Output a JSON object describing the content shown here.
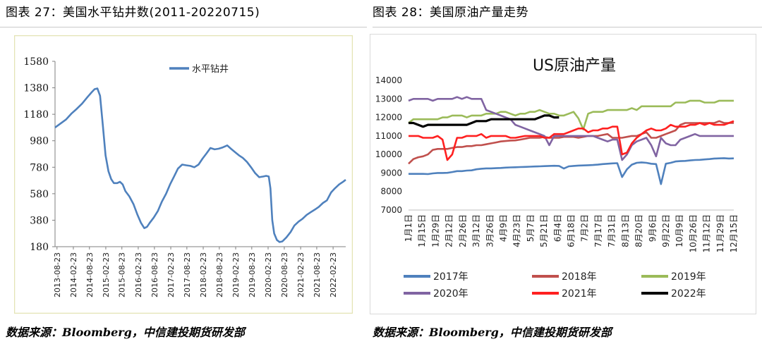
{
  "header": {
    "left_title": "图表 27：美国水平钻井数(2011-20220715)",
    "right_title": "图表 28：美国原油产量走势"
  },
  "footer": {
    "left_source": "数据来源：Bloomberg，中信建投期货研发部",
    "right_source": "数据来源：Bloomberg，中信建投期货研发部"
  },
  "colors": {
    "rig_line": "#4f81bd",
    "s2017": "#4f81bd",
    "s2018": "#c0504d",
    "s2019": "#9bbb59",
    "s2020": "#8064a2",
    "s2021": "#ff2020",
    "s2022": "#000000",
    "left_frame": "#e3e3b4",
    "right_frame": "#d9d9d9"
  },
  "chart_data": [
    {
      "type": "line",
      "legend": [
        "水平钻井"
      ],
      "legend_position": "top-center",
      "ylim": [
        180,
        1580
      ],
      "y_ticks": [
        "1580",
        "1380",
        "1180",
        "980",
        "780",
        "580",
        "380",
        "180"
      ],
      "x_ticks": [
        "2013-08-23",
        "2014-02-23",
        "2014-08-23",
        "2015-02-23",
        "2015-08-23",
        "2016-02-23",
        "2016-08-23",
        "2017-02-23",
        "2017-08-23",
        "2018-02-23",
        "2018-08-23",
        "2019-02-23",
        "2019-08-23",
        "2020-02-23",
        "2020-08-23",
        "2021-02-23",
        "2021-08-23",
        "2022-02-23"
      ],
      "xlim": [
        "2013-08-01",
        "2022-07-15"
      ],
      "series": [
        {
          "name": "水平钻井",
          "points": [
            [
              "2013-08-01",
              1080
            ],
            [
              "2013-10-01",
              1110
            ],
            [
              "2013-12-01",
              1140
            ],
            [
              "2014-02-01",
              1185
            ],
            [
              "2014-04-01",
              1220
            ],
            [
              "2014-06-01",
              1260
            ],
            [
              "2014-08-01",
              1310
            ],
            [
              "2014-09-15",
              1345
            ],
            [
              "2014-10-20",
              1370
            ],
            [
              "2014-11-20",
              1375
            ],
            [
              "2014-12-20",
              1320
            ],
            [
              "2015-01-20",
              1100
            ],
            [
              "2015-02-20",
              870
            ],
            [
              "2015-03-25",
              750
            ],
            [
              "2015-04-25",
              690
            ],
            [
              "2015-05-25",
              660
            ],
            [
              "2015-07-01",
              660
            ],
            [
              "2015-08-01",
              670
            ],
            [
              "2015-09-01",
              650
            ],
            [
              "2015-10-01",
              600
            ],
            [
              "2015-11-15",
              560
            ],
            [
              "2016-01-01",
              500
            ],
            [
              "2016-02-15",
              420
            ],
            [
              "2016-03-25",
              360
            ],
            [
              "2016-05-01",
              320
            ],
            [
              "2016-06-01",
              330
            ],
            [
              "2016-07-01",
              360
            ],
            [
              "2016-08-15",
              400
            ],
            [
              "2016-10-01",
              450
            ],
            [
              "2016-11-15",
              520
            ],
            [
              "2017-01-01",
              580
            ],
            [
              "2017-02-15",
              650
            ],
            [
              "2017-04-01",
              710
            ],
            [
              "2017-05-15",
              770
            ],
            [
              "2017-07-01",
              800
            ],
            [
              "2017-08-15",
              795
            ],
            [
              "2017-10-01",
              790
            ],
            [
              "2017-11-15",
              780
            ],
            [
              "2018-01-01",
              800
            ],
            [
              "2018-02-15",
              845
            ],
            [
              "2018-04-01",
              885
            ],
            [
              "2018-05-15",
              925
            ],
            [
              "2018-07-01",
              915
            ],
            [
              "2018-08-15",
              920
            ],
            [
              "2018-10-01",
              930
            ],
            [
              "2018-11-20",
              945
            ],
            [
              "2019-01-01",
              920
            ],
            [
              "2019-02-15",
              895
            ],
            [
              "2019-04-01",
              870
            ],
            [
              "2019-05-15",
              850
            ],
            [
              "2019-07-01",
              820
            ],
            [
              "2019-08-15",
              780
            ],
            [
              "2019-10-01",
              735
            ],
            [
              "2019-11-15",
              705
            ],
            [
              "2020-01-01",
              710
            ],
            [
              "2020-02-01",
              715
            ],
            [
              "2020-03-01",
              710
            ],
            [
              "2020-03-20",
              620
            ],
            [
              "2020-04-10",
              380
            ],
            [
              "2020-05-01",
              280
            ],
            [
              "2020-06-01",
              230
            ],
            [
              "2020-07-01",
              215
            ],
            [
              "2020-08-01",
              220
            ],
            [
              "2020-09-15",
              250
            ],
            [
              "2020-11-01",
              290
            ],
            [
              "2020-12-15",
              340
            ],
            [
              "2021-02-01",
              370
            ],
            [
              "2021-03-15",
              390
            ],
            [
              "2021-05-01",
              420
            ],
            [
              "2021-06-15",
              440
            ],
            [
              "2021-08-01",
              460
            ],
            [
              "2021-09-15",
              480
            ],
            [
              "2021-11-01",
              510
            ],
            [
              "2021-12-15",
              530
            ],
            [
              "2022-02-01",
              590
            ],
            [
              "2022-03-15",
              620
            ],
            [
              "2022-05-01",
              650
            ],
            [
              "2022-06-15",
              670
            ],
            [
              "2022-07-15",
              685
            ]
          ]
        }
      ]
    },
    {
      "type": "line",
      "title": "US原油产量",
      "legend_position": "bottom",
      "ylim": [
        7000,
        14000
      ],
      "y_ticks": [
        "14000",
        "13000",
        "12000",
        "11000",
        "10000",
        "9000",
        "8000",
        "7000"
      ],
      "x_ticks": [
        "1月1日",
        "1月15日",
        "1月29日",
        "2月12日",
        "2月26日",
        "3月12日",
        "3月26日",
        "4月9日",
        "4月23日",
        "5月7日",
        "5月21日",
        "6月4日",
        "6月18日",
        "7月2日",
        "7月17日",
        "7月31日",
        "8月13日",
        "8月20日",
        "9月6日",
        "9月22日",
        "10月9日",
        "10月26日",
        "11月12日",
        "11月29日",
        "12月15日"
      ],
      "x_unit": "week",
      "series": [
        {
          "name": "2017年",
          "values": [
            8950,
            8950,
            8950,
            8950,
            8940,
            8980,
            9000,
            9000,
            9010,
            9050,
            9100,
            9100,
            9130,
            9140,
            9200,
            9230,
            9250,
            9250,
            9260,
            9270,
            9290,
            9300,
            9310,
            9320,
            9330,
            9340,
            9350,
            9360,
            9370,
            9380,
            9390,
            9380,
            9240,
            9360,
            9380,
            9400,
            9410,
            9420,
            9430,
            9450,
            9480,
            9500,
            9520,
            9530,
            8780,
            9200,
            9450,
            9550,
            9570,
            9550,
            9500,
            9480,
            8400,
            9500,
            9550,
            9620,
            9640,
            9650,
            9680,
            9700,
            9710,
            9730,
            9750,
            9780,
            9790,
            9800,
            9780,
            9790
          ]
        },
        {
          "name": "2018年",
          "values": [
            9500,
            9750,
            9850,
            9900,
            10000,
            10250,
            10300,
            10300,
            10300,
            10350,
            10400,
            10400,
            10450,
            10450,
            10500,
            10500,
            10550,
            10600,
            10650,
            10700,
            10725,
            10750,
            10760,
            10800,
            10850,
            10900,
            10900,
            10900,
            10950,
            10900,
            10900,
            10900,
            10950,
            10950,
            10950,
            10900,
            10950,
            11000,
            11000,
            11000,
            11050,
            11100,
            10900,
            10900,
            10900,
            10950,
            11000,
            11000,
            11100,
            11200,
            10900,
            10900,
            11000,
            11100,
            11200,
            11300,
            11600,
            11700,
            11700,
            11700,
            11700,
            11700,
            11700,
            11700,
            11800,
            11700,
            11700,
            11700
          ]
        },
        {
          "name": "2019年",
          "values": [
            11700,
            11900,
            11900,
            11900,
            11900,
            11900,
            11900,
            12000,
            12000,
            12100,
            12100,
            12100,
            12000,
            12100,
            12100,
            12100,
            12200,
            12200,
            12200,
            12300,
            12300,
            12200,
            12100,
            12200,
            12200,
            12300,
            12300,
            12400,
            12300,
            12200,
            12200,
            12100,
            12100,
            12200,
            12300,
            11950,
            11350,
            12200,
            12300,
            12300,
            12300,
            12400,
            12400,
            12400,
            12400,
            12400,
            12500,
            12400,
            12600,
            12600,
            12600,
            12600,
            12600,
            12600,
            12600,
            12800,
            12800,
            12800,
            12900,
            12900,
            12900,
            12800,
            12800,
            12800,
            12900,
            12900,
            12900,
            12900
          ]
        },
        {
          "name": "2020年",
          "values": [
            12900,
            13000,
            13000,
            13000,
            13000,
            12900,
            13000,
            13000,
            13000,
            13000,
            13100,
            13000,
            13100,
            13000,
            13000,
            13000,
            12400,
            12300,
            12200,
            12100,
            12000,
            11900,
            11600,
            11500,
            11400,
            11300,
            11200,
            11100,
            11000,
            10500,
            11000,
            11000,
            11000,
            11000,
            11000,
            11000,
            11000,
            11000,
            11000,
            10900,
            10800,
            10700,
            10800,
            10800,
            9700,
            10000,
            10500,
            10700,
            10800,
            10900,
            10500,
            9900,
            10900,
            10600,
            10500,
            10500,
            10800,
            10900,
            11000,
            11100,
            11000,
            11000,
            11000,
            11000,
            11000,
            11000,
            11000,
            11000
          ]
        },
        {
          "name": "2021年",
          "values": [
            11000,
            11000,
            11000,
            10900,
            10900,
            10900,
            11000,
            10800,
            9700,
            10000,
            10900,
            10900,
            11000,
            11000,
            11000,
            11100,
            10900,
            11000,
            11000,
            11000,
            11000,
            10900,
            10900,
            10950,
            11000,
            11000,
            11000,
            11000,
            10900,
            10900,
            11100,
            11100,
            11100,
            11200,
            11300,
            11400,
            11400,
            11200,
            11300,
            11300,
            11400,
            11400,
            11500,
            11500,
            10000,
            10100,
            10600,
            10900,
            11100,
            11300,
            11400,
            11300,
            11300,
            11400,
            11600,
            11500,
            11500,
            11500,
            11600,
            11600,
            11700,
            11600,
            11700,
            11600,
            11600,
            11600,
            11700,
            11800
          ]
        },
        {
          "name": "2022年",
          "values": [
            11700,
            11700,
            11600,
            11500,
            11600,
            11600,
            11600,
            11600,
            11600,
            11600,
            11600,
            11600,
            11600,
            11700,
            11800,
            11800,
            11800,
            11900,
            11900,
            11900,
            11900,
            11900,
            11900,
            11900,
            11900,
            11900,
            11900,
            12000,
            12100,
            12100,
            12000,
            12000
          ]
        }
      ]
    }
  ]
}
